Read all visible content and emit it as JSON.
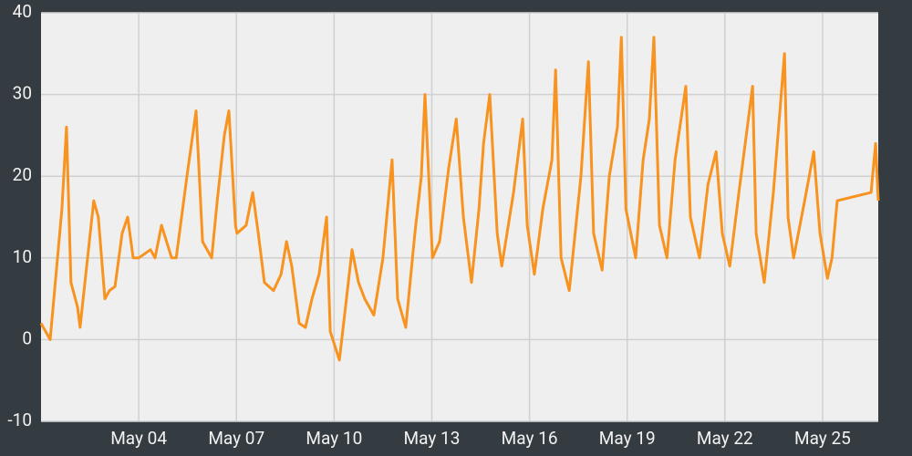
{
  "chart_data": {
    "type": "line",
    "x": [
      1.0,
      1.28,
      1.64,
      1.78,
      1.92,
      2.12,
      2.2,
      2.62,
      2.76,
      2.96,
      3.1,
      3.27,
      3.49,
      3.66,
      3.83,
      4.0,
      4.36,
      4.5,
      4.7,
      5.01,
      5.15,
      5.48,
      5.76,
      5.96,
      6.24,
      6.41,
      6.63,
      6.77,
      6.97,
      7.02,
      7.3,
      7.5,
      7.67,
      7.86,
      8.14,
      8.37,
      8.54,
      8.7,
      8.93,
      9.12,
      9.32,
      9.54,
      9.77,
      9.88,
      10.16,
      10.38,
      10.55,
      10.75,
      10.94,
      11.22,
      11.5,
      11.78,
      11.95,
      12.2,
      12.48,
      12.68,
      12.79,
      13.02,
      13.24,
      13.52,
      13.75,
      13.97,
      14.22,
      14.45,
      14.59,
      14.78,
      15.01,
      15.15,
      15.51,
      15.79,
      15.93,
      16.15,
      16.41,
      16.69,
      16.8,
      16.97,
      17.22,
      17.58,
      17.81,
      17.97,
      18.23,
      18.45,
      18.7,
      18.82,
      18.96,
      19.26,
      19.49,
      19.68,
      19.82,
      19.99,
      20.22,
      20.47,
      20.69,
      20.8,
      20.94,
      21.22,
      21.48,
      21.73,
      21.92,
      22.15,
      22.43,
      22.85,
      22.96,
      23.21,
      23.49,
      23.83,
      23.94,
      24.11,
      24.45,
      24.73,
      24.92,
      25.15,
      25.29,
      25.45,
      26.49,
      26.63,
      26.71
    ],
    "values": [
      2,
      0,
      16,
      26,
      7,
      4,
      1.5,
      17,
      15,
      5,
      6,
      6.5,
      13,
      15,
      10,
      10,
      11,
      10,
      14,
      10,
      10,
      20,
      28,
      12,
      10,
      17,
      25,
      28,
      14,
      13,
      14,
      18,
      13,
      7,
      6,
      8,
      12,
      9,
      2,
      1.5,
      5,
      8,
      15,
      1,
      -2.5,
      5,
      11,
      7,
      5,
      3,
      10,
      22,
      5,
      1.5,
      13,
      20,
      30,
      10,
      12,
      21,
      27,
      15,
      7,
      16,
      24,
      30,
      13,
      9,
      18,
      27,
      14,
      8,
      16,
      22,
      33,
      10,
      6,
      20,
      34,
      13,
      8.5,
      20,
      26,
      37,
      16,
      10,
      22,
      27,
      37,
      14,
      10,
      22,
      28,
      31,
      15,
      10,
      19,
      23,
      13,
      9,
      18,
      31,
      13,
      7,
      18,
      35,
      15,
      10,
      17,
      23,
      13,
      7.5,
      10,
      17,
      18,
      24,
      17
    ],
    "color": "#f7931e",
    "xlim": [
      1,
      26.71
    ],
    "xticks": [
      {
        "value": 4,
        "label": "May 04"
      },
      {
        "value": 7,
        "label": "May 07"
      },
      {
        "value": 10,
        "label": "May 10"
      },
      {
        "value": 13,
        "label": "May 13"
      },
      {
        "value": 16,
        "label": "May 16"
      },
      {
        "value": 19,
        "label": "May 19"
      },
      {
        "value": 22,
        "label": "May 22"
      },
      {
        "value": 25,
        "label": "May 25"
      }
    ],
    "ylim": [
      -10,
      40
    ],
    "yticks": [
      -10,
      0,
      10,
      20,
      30,
      40
    ],
    "grid": true
  }
}
